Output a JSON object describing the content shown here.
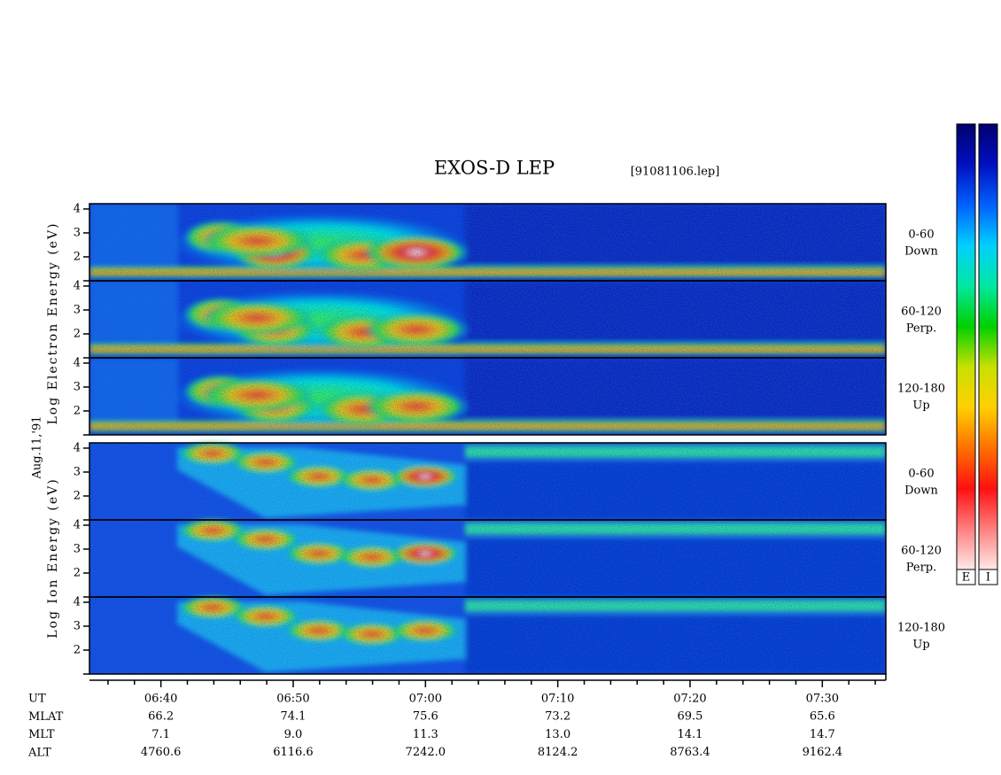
{
  "chart_data": {
    "type": "spectrogram",
    "title": "EXOS-D LEP",
    "file_label": "[91081106.lep]",
    "date_label": "Aug.11,'91",
    "group_labels": [
      "Log Electron Energy (eV)",
      "Log Ion Energy (eV)"
    ],
    "xlim": [
      "06:34:36",
      "07:34:48"
    ],
    "xticks": [
      "06:40",
      "06:50",
      "07:00",
      "07:10",
      "07:20",
      "07:30"
    ],
    "xminorticks": [
      "06:36",
      "06:38",
      "06:42",
      "06:44",
      "06:46",
      "06:48",
      "06:52",
      "06:54",
      "06:56",
      "06:58",
      "07:02",
      "07:04",
      "07:06",
      "07:08",
      "07:12",
      "07:14",
      "07:16",
      "07:18",
      "07:22",
      "07:24",
      "07:26",
      "07:28",
      "07:32",
      "07:34"
    ],
    "panels": [
      {
        "species": "Electron",
        "angle": "0-60",
        "direction": "Down",
        "ylim": [
          1,
          4.22
        ],
        "yticks": [
          2,
          3,
          4
        ],
        "yminorticks": [
          1
        ]
      },
      {
        "species": "Electron",
        "angle": "60-120",
        "direction": "Perp.",
        "ylim": [
          1,
          4.22
        ],
        "yticks": [
          2,
          3,
          4
        ],
        "yminorticks": [
          1
        ]
      },
      {
        "species": "Electron",
        "angle": "120-180",
        "direction": "Up",
        "ylim": [
          1,
          4.22
        ],
        "yticks": [
          2,
          3,
          4
        ],
        "yminorticks": [
          1
        ]
      },
      {
        "species": "Ion",
        "angle": "0-60",
        "direction": "Down",
        "ylim": [
          1,
          4.22
        ],
        "yticks": [
          2,
          3,
          4
        ],
        "yminorticks": [
          1
        ]
      },
      {
        "species": "Ion",
        "angle": "60-120",
        "direction": "Perp.",
        "ylim": [
          1,
          4.22
        ],
        "yticks": [
          2,
          3,
          4
        ],
        "yminorticks": [
          1
        ]
      },
      {
        "species": "Ion",
        "angle": "120-180",
        "direction": "Up",
        "ylim": [
          1,
          4.22
        ],
        "yticks": [
          2,
          3,
          4
        ],
        "yminorticks": [
          1
        ]
      }
    ],
    "colorbars": [
      "E",
      "I"
    ],
    "colorbar_colors": [
      "#00006e",
      "#0010c0",
      "#0060ff",
      "#00d0ff",
      "#00e8a0",
      "#00d000",
      "#c8e000",
      "#ffd000",
      "#ff7000",
      "#ff1010",
      "#ff8080",
      "#ffe8e8"
    ],
    "ephemeris": {
      "row_labels": [
        "UT",
        "MLAT",
        "MLT",
        "ALT"
      ],
      "rows": [
        [
          "66.2",
          "74.1",
          "75.6",
          "73.2",
          "69.5",
          "65.6"
        ],
        [
          "7.1",
          "9.0",
          "11.3",
          "13.0",
          "14.1",
          "14.7"
        ],
        [
          "4760.6",
          "6116.6",
          "7242.0",
          "8124.2",
          "8763.4",
          "9162.4"
        ]
      ]
    }
  }
}
